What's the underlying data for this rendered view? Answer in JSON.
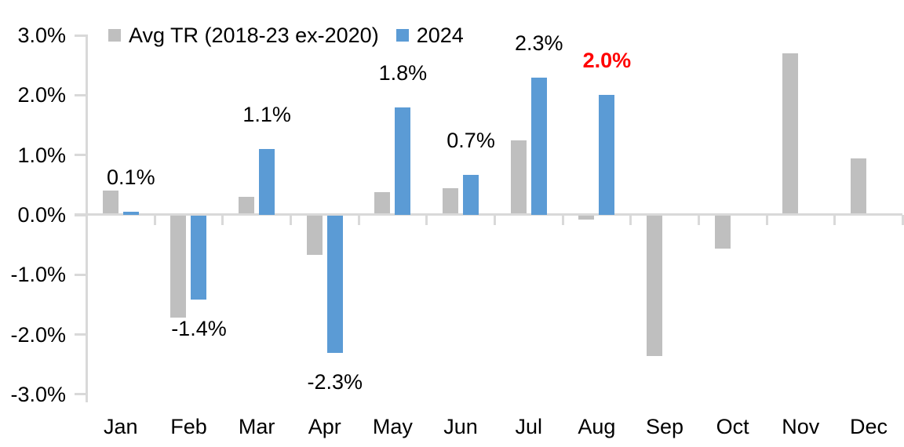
{
  "chart_data": {
    "type": "bar",
    "title": "",
    "xlabel": "",
    "ylabel": "",
    "categories": [
      "Jan",
      "Feb",
      "Mar",
      "Apr",
      "May",
      "Jun",
      "Jul",
      "Aug",
      "Sep",
      "Oct",
      "Nov",
      "Dec"
    ],
    "series": [
      {
        "name": "Avg TR (2018-23 ex-2020)",
        "color": "#BFBFBF",
        "values": [
          0.4,
          -1.7,
          0.3,
          -0.65,
          0.38,
          0.45,
          1.25,
          -0.07,
          -2.35,
          -0.55,
          2.7,
          0.95
        ]
      },
      {
        "name": "2024",
        "color": "#5B9BD5",
        "values": [
          0.05,
          -1.4,
          1.1,
          -2.3,
          1.8,
          0.67,
          2.3,
          2.0,
          null,
          null,
          null,
          null
        ]
      }
    ],
    "value_labels": [
      {
        "month_index": 0,
        "text": "0.1%",
        "color": "#000000",
        "bold": false
      },
      {
        "month_index": 1,
        "text": "-1.4%",
        "color": "#000000",
        "bold": false
      },
      {
        "month_index": 2,
        "text": "1.1%",
        "color": "#000000",
        "bold": false
      },
      {
        "month_index": 3,
        "text": "-2.3%",
        "color": "#000000",
        "bold": false
      },
      {
        "month_index": 4,
        "text": "1.8%",
        "color": "#000000",
        "bold": false
      },
      {
        "month_index": 5,
        "text": "0.7%",
        "color": "#000000",
        "bold": false
      },
      {
        "month_index": 6,
        "text": "2.3%",
        "color": "#000000",
        "bold": false
      },
      {
        "month_index": 7,
        "text": "2.0%",
        "color": "#FF0000",
        "bold": true
      }
    ],
    "y_ticks": [
      "3.0%",
      "2.0%",
      "1.0%",
      "0.0%",
      "-1.0%",
      "-2.0%",
      "-3.0%"
    ],
    "ylim": [
      -3.0,
      3.0
    ],
    "grid": false,
    "legend_position": "top",
    "axis_color": "#D9D9D9",
    "text_color": "#000000",
    "highlight_color": "#FF0000"
  }
}
